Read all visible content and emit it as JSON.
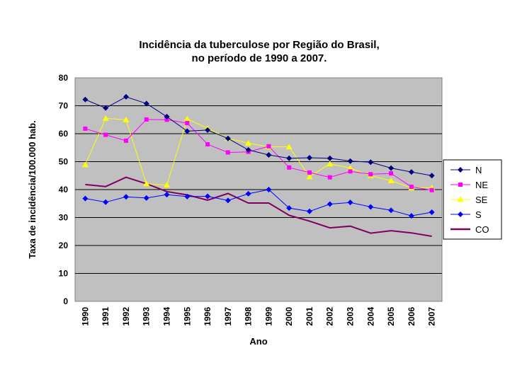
{
  "chart_data": {
    "type": "line",
    "title_lines": [
      "Incidência da tuberculose por Região do Brasil,",
      "no período de 1990 a 2007."
    ],
    "xlabel": "Ano",
    "ylabel": "Taxa de incidência/100.000 hab.",
    "ylim": [
      0,
      80
    ],
    "yticks": [
      "0",
      "10",
      "20",
      "30",
      "40",
      "50",
      "60",
      "70",
      "80"
    ],
    "grid": "horizontal",
    "legend_position": "right",
    "plot_background": "#c0c0c0",
    "x": [
      "1990",
      "1991",
      "1992",
      "1993",
      "1994",
      "1995",
      "1996",
      "1997",
      "1998",
      "1999",
      "2000",
      "2001",
      "2002",
      "2003",
      "2004",
      "2005",
      "2006",
      "2007"
    ],
    "series": [
      {
        "name": "N",
        "color": "#000080",
        "marker": "diamond",
        "values": [
          72.2,
          69.2,
          73.2,
          70.8,
          66.1,
          60.9,
          61.3,
          58.3,
          54.2,
          52.4,
          51.2,
          51.4,
          51.2,
          50.2,
          49.8,
          47.7,
          46.3,
          45.0
        ]
      },
      {
        "name": "NE",
        "color": "#ff00ff",
        "marker": "square",
        "values": [
          61.8,
          59.6,
          57.5,
          65.1,
          65.0,
          63.8,
          56.2,
          53.3,
          53.5,
          55.5,
          47.9,
          46.1,
          44.4,
          46.5,
          45.5,
          45.8,
          41.0,
          39.8
        ]
      },
      {
        "name": "SE",
        "color": "#ffff00",
        "marker": "triangle",
        "values": [
          48.9,
          65.5,
          65.0,
          42.1,
          41.6,
          65.3,
          61.9,
          58.3,
          56.6,
          55.3,
          55.3,
          44.6,
          49.2,
          47.7,
          45.0,
          43.2,
          40.6,
          40.7
        ]
      },
      {
        "name": "S",
        "color": "#0000ff",
        "marker": "diamond",
        "values": [
          36.8,
          35.5,
          37.4,
          37.0,
          38.2,
          37.5,
          37.6,
          36.1,
          38.5,
          40.0,
          33.4,
          32.2,
          34.8,
          35.4,
          33.8,
          32.6,
          30.6,
          31.9
        ]
      },
      {
        "name": "CO",
        "color": "#800060",
        "marker": "none",
        "values": [
          41.8,
          41.1,
          44.4,
          42.1,
          39.3,
          38.1,
          36.2,
          38.6,
          35.2,
          35.2,
          30.8,
          28.7,
          26.3,
          26.9,
          24.4,
          25.3,
          24.5,
          23.3
        ]
      }
    ]
  }
}
